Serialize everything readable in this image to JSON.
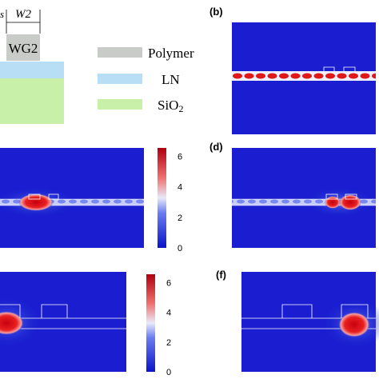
{
  "schematic": {
    "waveguide_label": "WG2",
    "width_label": "W2",
    "left_dim_label": "s"
  },
  "legend": [
    {
      "label": "Polymer"
    },
    {
      "label": "LN"
    },
    {
      "label": "SiO",
      "sub": "2"
    }
  ],
  "panels": [
    {
      "label": "(b)"
    },
    {
      "label": "(d)"
    },
    {
      "label": "(f)"
    }
  ],
  "colorbars": [
    {
      "ticks": [
        0,
        2,
        4,
        6
      ]
    },
    {
      "ticks": [
        0,
        2,
        4,
        6
      ]
    }
  ]
}
